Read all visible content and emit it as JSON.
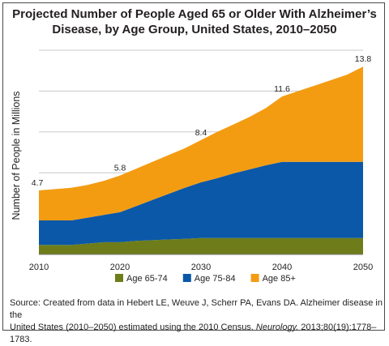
{
  "title_line1": "Projected Number of People Aged 65 or Older With Alzheimer’s",
  "title_line2": "Disease, by Age Group, United States, 2010–2050",
  "source": {
    "prefix": "Source: Created from data in Hebert LE, Weuve J, Scherr PA, Evans DA. Alzheimer disease in the",
    "line2_start": "United States (2010–2050) estimated using the 2010 Census. ",
    "journal": "Neurology.",
    "line2_end": " 2013;80(19):1778–1783."
  },
  "colors": {
    "age_65_74": "#6e7d1a",
    "age_75_84": "#0b58a8",
    "age_85_plus": "#f39c12",
    "grid": "#c8c8c8",
    "axis": "#7a7a7a"
  },
  "chart_data": {
    "type": "area",
    "stacked": true,
    "ylabel": "Number of People in Millions",
    "xlabel": "",
    "xlim": [
      2010,
      2050
    ],
    "ylim": [
      0,
      15
    ],
    "x_ticks": [
      "2010",
      "2020",
      "2030",
      "2040",
      "2050"
    ],
    "grid": "horizontal",
    "legend_position": "bottom",
    "x": [
      2010,
      2012,
      2014,
      2016,
      2018,
      2020,
      2022,
      2024,
      2026,
      2028,
      2030,
      2032,
      2034,
      2036,
      2038,
      2040,
      2042,
      2044,
      2046,
      2048,
      2050
    ],
    "series": [
      {
        "name": "Age 65-74",
        "color_key": "age_65_74",
        "values": [
          0.7,
          0.7,
          0.7,
          0.8,
          0.9,
          0.9,
          1.0,
          1.05,
          1.1,
          1.15,
          1.2,
          1.2,
          1.2,
          1.2,
          1.2,
          1.2,
          1.2,
          1.2,
          1.2,
          1.2,
          1.2
        ]
      },
      {
        "name": "Age 75-84",
        "color_key": "age_75_84",
        "values": [
          1.8,
          1.8,
          1.8,
          1.9,
          2.0,
          2.2,
          2.55,
          2.95,
          3.35,
          3.75,
          4.1,
          4.4,
          4.75,
          5.05,
          5.35,
          5.6,
          5.6,
          5.6,
          5.6,
          5.6,
          5.6
        ]
      },
      {
        "name": "Age 85+",
        "color_key": "age_85_plus",
        "values": [
          2.2,
          2.3,
          2.4,
          2.4,
          2.5,
          2.7,
          2.75,
          2.8,
          2.85,
          2.9,
          3.1,
          3.4,
          3.6,
          3.85,
          4.2,
          4.8,
          5.2,
          5.6,
          6.0,
          6.4,
          7.0
        ]
      }
    ],
    "annotations": [
      {
        "x": 2010,
        "label": "4.7"
      },
      {
        "x": 2020,
        "label": "5.8"
      },
      {
        "x": 2030,
        "label": "8.4"
      },
      {
        "x": 2040,
        "label": "11.6"
      },
      {
        "x": 2050,
        "label": "13.8"
      }
    ]
  }
}
